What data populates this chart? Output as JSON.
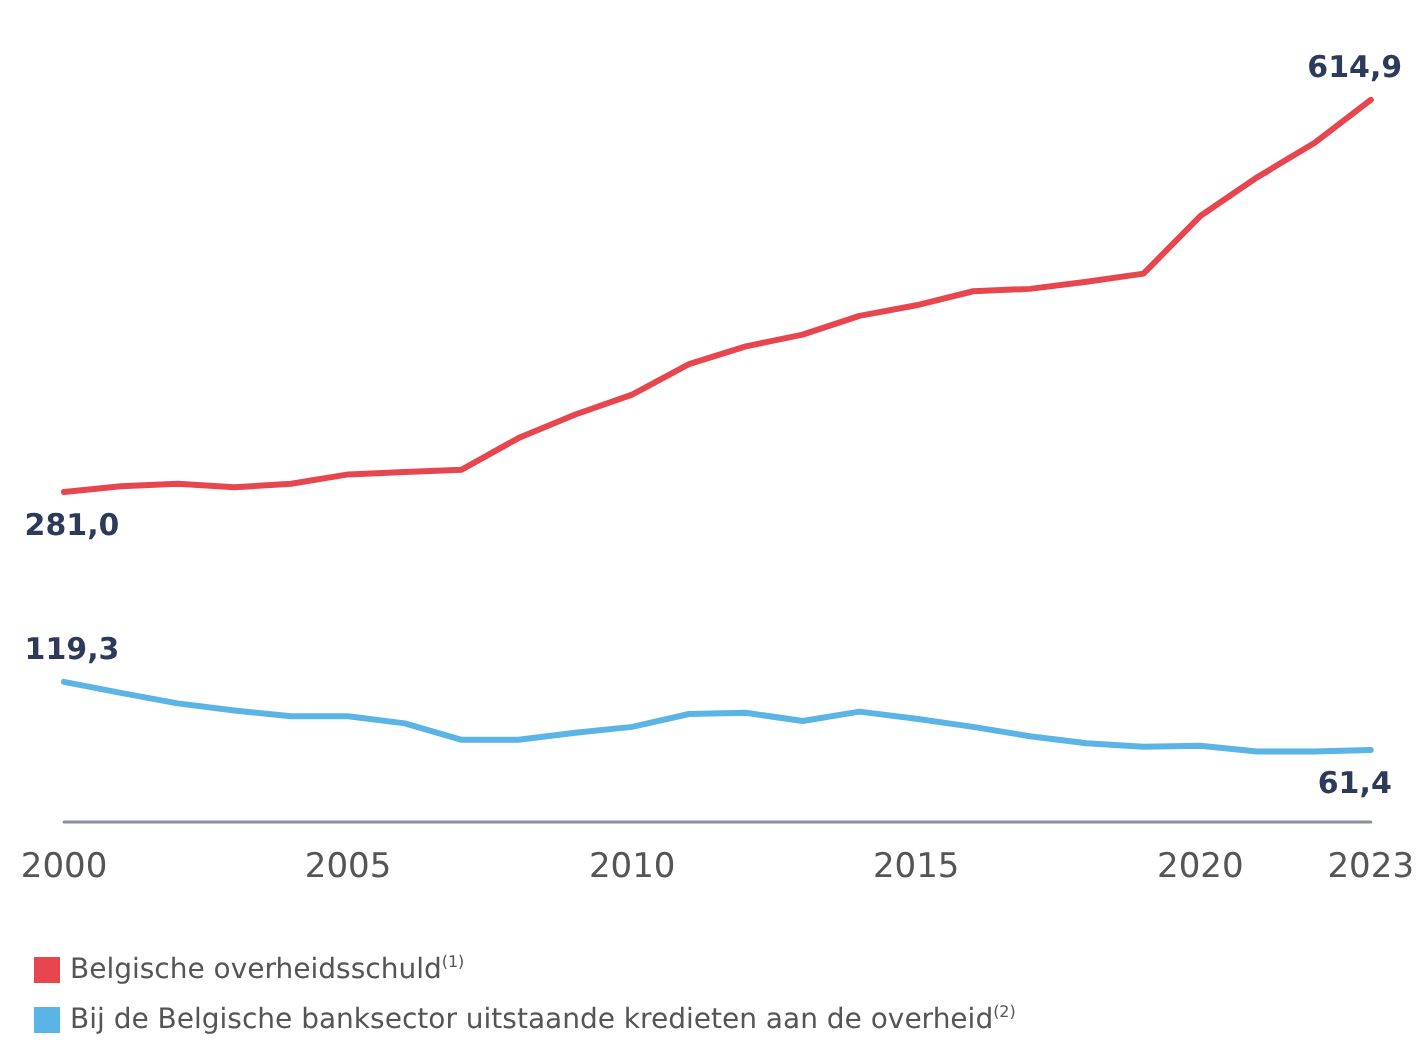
{
  "chart_data": {
    "type": "line",
    "x": [
      2000,
      2001,
      2002,
      2003,
      2004,
      2005,
      2006,
      2007,
      2008,
      2009,
      2010,
      2011,
      2012,
      2013,
      2014,
      2015,
      2016,
      2017,
      2018,
      2019,
      2020,
      2021,
      2022,
      2023
    ],
    "xlim": [
      2000,
      2023
    ],
    "xticks": [
      2000,
      2005,
      2010,
      2015,
      2020,
      2023
    ],
    "tick_labels": "x",
    "legend": "bottom left",
    "series": [
      {
        "name": "Belgische overheidsschuld$^{(1)}$",
        "color": "#e8464f",
        "values": [
          281.0,
          286,
          288,
          285,
          288,
          296,
          298,
          300,
          327,
          347,
          364,
          390,
          405,
          415,
          431,
          440,
          452,
          454,
          460,
          467,
          516,
          549,
          578,
          614.9
        ],
        "value_labels": [
          "281,0",
          null,
          null,
          null,
          null,
          null,
          null,
          null,
          null,
          null,
          null,
          null,
          null,
          null,
          null,
          null,
          null,
          null,
          null,
          null,
          null,
          null,
          null,
          "614,9"
        ]
      },
      {
        "name": "Bij de Belgische banksector uitstaande kredieten aan de overheid$^{(2)}$",
        "color": "#5ab4e5",
        "values": [
          119.3,
          110,
          101,
          95,
          90,
          90,
          84,
          70,
          70,
          76,
          81,
          92,
          93,
          86,
          94,
          88,
          81,
          73,
          67,
          64,
          65,
          60,
          60,
          61.4
        ],
        "value_labels": [
          "119,3",
          null,
          null,
          null,
          null,
          null,
          null,
          null,
          null,
          null,
          null,
          null,
          null,
          null,
          null,
          null,
          null,
          null,
          null,
          null,
          null,
          null,
          null,
          "61,4"
        ]
      }
    ]
  }
}
